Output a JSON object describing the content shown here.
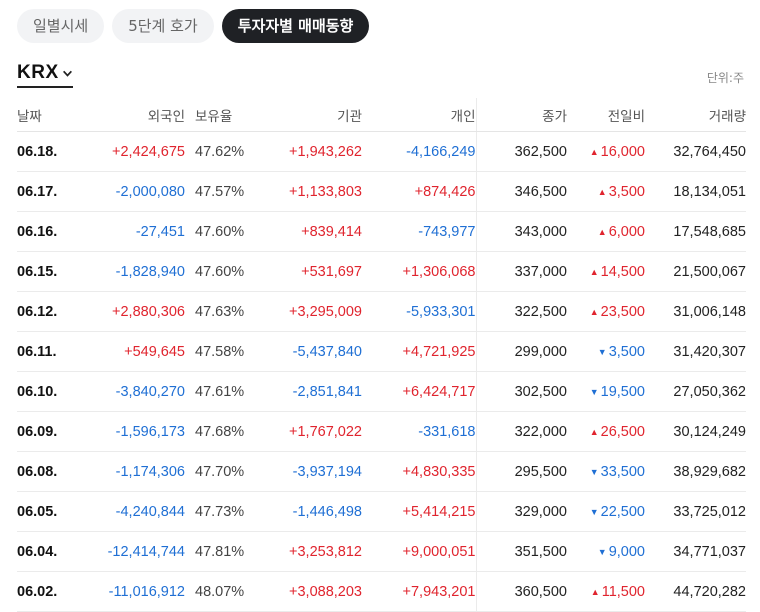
{
  "tabs": [
    {
      "label": "일별시세",
      "active": false
    },
    {
      "label": "5단계 호가",
      "active": false
    },
    {
      "label": "투자자별 매매동향",
      "active": true
    }
  ],
  "market": {
    "label": "KRX",
    "icon": "chevron-down-icon"
  },
  "unit_label": "단위:주",
  "colors": {
    "up": "#e0242e",
    "down": "#1f6fd4",
    "active_tab": "#1f2125"
  },
  "table": {
    "headers": {
      "date": "날짜",
      "foreign": "외국인",
      "holding": "보유율",
      "institution": "기관",
      "individual": "개인",
      "close": "종가",
      "change": "전일비",
      "volume": "거래량"
    },
    "rows": [
      {
        "date": "06.18.",
        "foreign": "+2,424,675",
        "holding": "47.62%",
        "institution": "+1,943,262",
        "individual": "-4,166,249",
        "close": "362,500",
        "change_dir": "up",
        "change": "16,000",
        "volume": "32,764,450"
      },
      {
        "date": "06.17.",
        "foreign": "-2,000,080",
        "holding": "47.57%",
        "institution": "+1,133,803",
        "individual": "+874,426",
        "close": "346,500",
        "change_dir": "up",
        "change": "3,500",
        "volume": "18,134,051"
      },
      {
        "date": "06.16.",
        "foreign": "-27,451",
        "holding": "47.60%",
        "institution": "+839,414",
        "individual": "-743,977",
        "close": "343,000",
        "change_dir": "up",
        "change": "6,000",
        "volume": "17,548,685"
      },
      {
        "date": "06.15.",
        "foreign": "-1,828,940",
        "holding": "47.60%",
        "institution": "+531,697",
        "individual": "+1,306,068",
        "close": "337,000",
        "change_dir": "up",
        "change": "14,500",
        "volume": "21,500,067"
      },
      {
        "date": "06.12.",
        "foreign": "+2,880,306",
        "holding": "47.63%",
        "institution": "+3,295,009",
        "individual": "-5,933,301",
        "close": "322,500",
        "change_dir": "up",
        "change": "23,500",
        "volume": "31,006,148"
      },
      {
        "date": "06.11.",
        "foreign": "+549,645",
        "holding": "47.58%",
        "institution": "-5,437,840",
        "individual": "+4,721,925",
        "close": "299,000",
        "change_dir": "down",
        "change": "3,500",
        "volume": "31,420,307"
      },
      {
        "date": "06.10.",
        "foreign": "-3,840,270",
        "holding": "47.61%",
        "institution": "-2,851,841",
        "individual": "+6,424,717",
        "close": "302,500",
        "change_dir": "down",
        "change": "19,500",
        "volume": "27,050,362"
      },
      {
        "date": "06.09.",
        "foreign": "-1,596,173",
        "holding": "47.68%",
        "institution": "+1,767,022",
        "individual": "-331,618",
        "close": "322,000",
        "change_dir": "up",
        "change": "26,500",
        "volume": "30,124,249"
      },
      {
        "date": "06.08.",
        "foreign": "-1,174,306",
        "holding": "47.70%",
        "institution": "-3,937,194",
        "individual": "+4,830,335",
        "close": "295,500",
        "change_dir": "down",
        "change": "33,500",
        "volume": "38,929,682"
      },
      {
        "date": "06.05.",
        "foreign": "-4,240,844",
        "holding": "47.73%",
        "institution": "-1,446,498",
        "individual": "+5,414,215",
        "close": "329,000",
        "change_dir": "down",
        "change": "22,500",
        "volume": "33,725,012"
      },
      {
        "date": "06.04.",
        "foreign": "-12,414,744",
        "holding": "47.81%",
        "institution": "+3,253,812",
        "individual": "+9,000,051",
        "close": "351,500",
        "change_dir": "down",
        "change": "9,000",
        "volume": "34,771,037"
      },
      {
        "date": "06.02.",
        "foreign": "-11,016,912",
        "holding": "48.07%",
        "institution": "+3,088,203",
        "individual": "+7,943,201",
        "close": "360,500",
        "change_dir": "up",
        "change": "11,500",
        "volume": "44,720,282"
      }
    ]
  }
}
